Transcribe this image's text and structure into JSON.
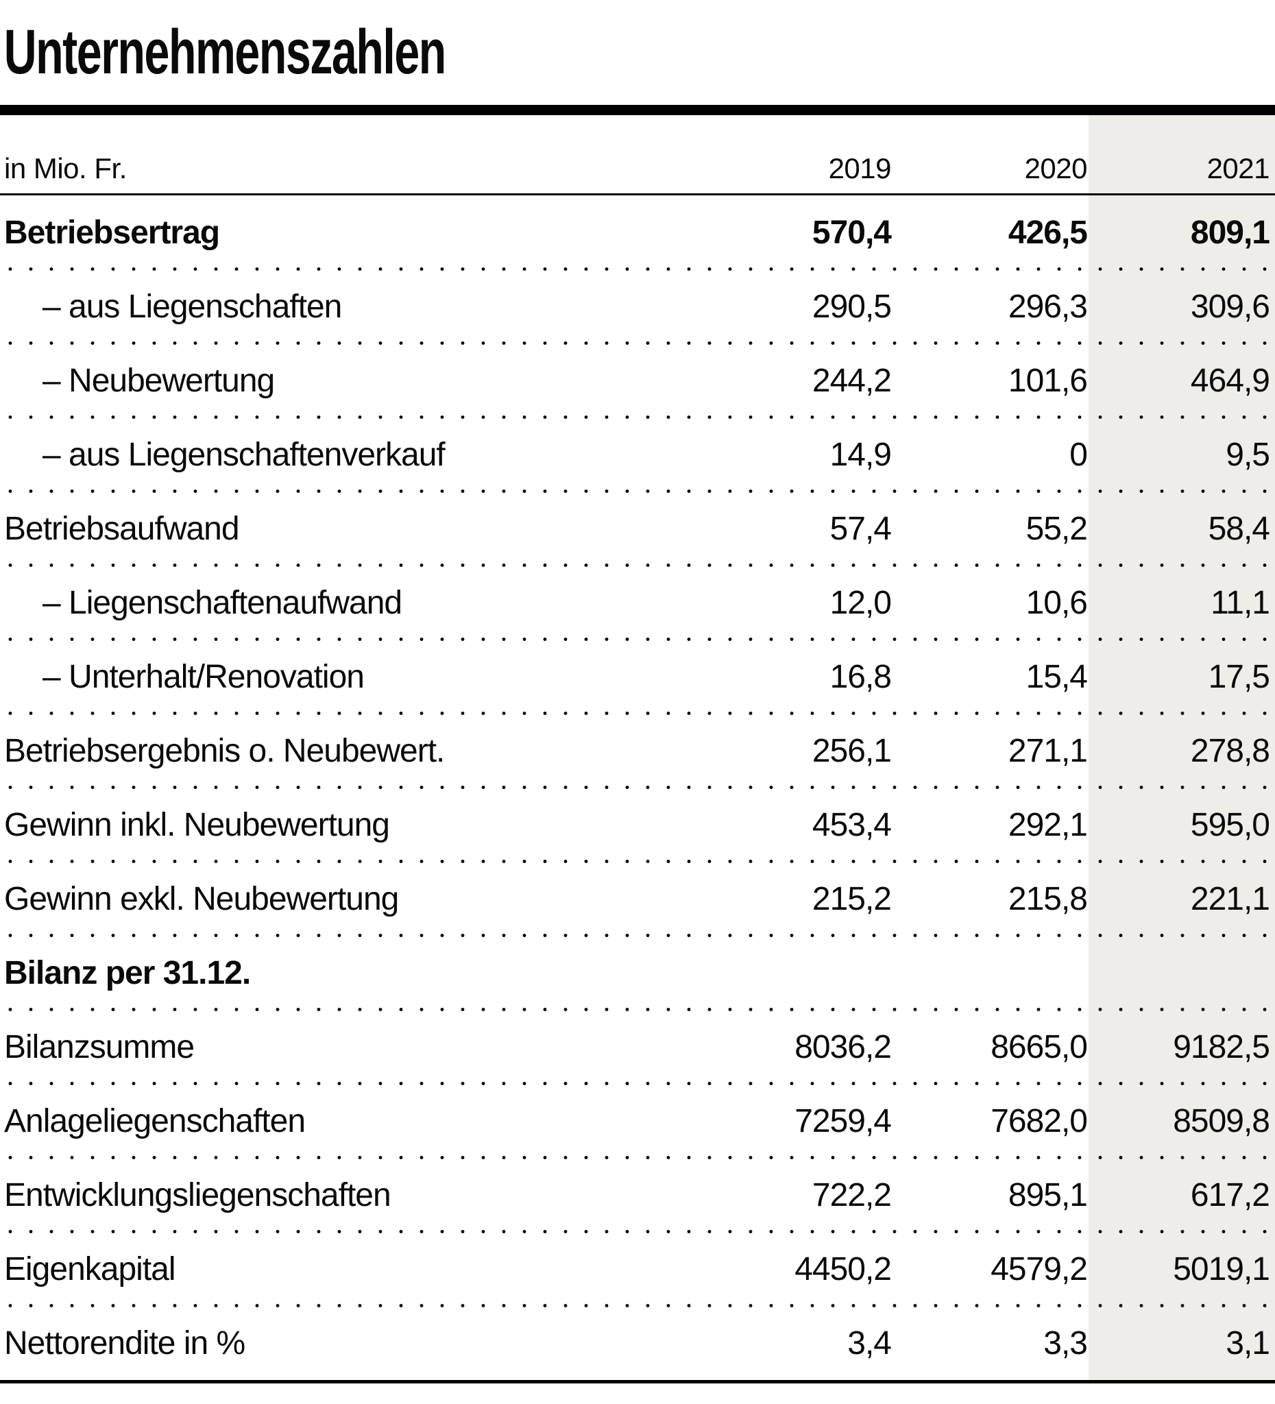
{
  "title": "Unternehmenszahlen",
  "table": {
    "unit_label": "in Mio. Fr.",
    "year_headers": [
      "2019",
      "2020",
      "2021"
    ],
    "highlight_color": "#eeede8",
    "rows": [
      {
        "label": "Betriebsertrag",
        "values": [
          "570,4",
          "426,5",
          "809,1"
        ]
      },
      {
        "label": "– aus Liegenschaften",
        "values": [
          "290,5",
          "296,3",
          "309,6"
        ]
      },
      {
        "label": "– Neubewertung",
        "values": [
          "244,2",
          "101,6",
          "464,9"
        ]
      },
      {
        "label": "– aus Liegenschaftenverkauf",
        "values": [
          "14,9",
          "0",
          "9,5"
        ]
      },
      {
        "label": "Betriebsaufwand",
        "values": [
          "57,4",
          "55,2",
          "58,4"
        ]
      },
      {
        "label": "– Liegenschaftenaufwand",
        "values": [
          "12,0",
          "10,6",
          "11,1"
        ]
      },
      {
        "label": "– Unterhalt/Renovation",
        "values": [
          "16,8",
          "15,4",
          "17,5"
        ]
      },
      {
        "label": "Betriebsergebnis o. Neubewert.",
        "values": [
          "256,1",
          "271,1",
          "278,8"
        ]
      },
      {
        "label": "Gewinn inkl. Neubewertung",
        "values": [
          "453,4",
          "292,1",
          "595,0"
        ]
      },
      {
        "label": "Gewinn exkl. Neubewertung",
        "values": [
          "215,2",
          "215,8",
          "221,1"
        ]
      },
      {
        "label": "Bilanz per 31.12.",
        "values": [
          "",
          "",
          ""
        ]
      },
      {
        "label": "Bilanzsumme",
        "values": [
          "8036,2",
          "8665,0",
          "9182,5"
        ]
      },
      {
        "label": "Anlageliegenschaften",
        "values": [
          "7259,4",
          "7682,0",
          "8509,8"
        ]
      },
      {
        "label": "Entwicklungsliegenschaften",
        "values": [
          "722,2",
          "895,1",
          "617,2"
        ]
      },
      {
        "label": "Eigenkapital",
        "values": [
          "4450,2",
          "4579,2",
          "5019,1"
        ]
      },
      {
        "label": "Nettorendite in %",
        "values": [
          "3,4",
          "3,3",
          "3,1"
        ]
      }
    ]
  },
  "chart_data": {
    "type": "table",
    "title": "Unternehmenszahlen",
    "unit": "in Mio. Fr.",
    "columns": [
      "2019",
      "2020",
      "2021"
    ],
    "highlighted_column": "2021",
    "rows": [
      {
        "label": "Betriebsertrag",
        "values": [
          570.4,
          426.5,
          809.1
        ],
        "bold": true
      },
      {
        "label": "aus Liegenschaften",
        "values": [
          290.5,
          296.3,
          309.6
        ],
        "indent": true
      },
      {
        "label": "Neubewertung",
        "values": [
          244.2,
          101.6,
          464.9
        ],
        "indent": true
      },
      {
        "label": "aus Liegenschaftenverkauf",
        "values": [
          14.9,
          0,
          9.5
        ],
        "indent": true
      },
      {
        "label": "Betriebsaufwand",
        "values": [
          57.4,
          55.2,
          58.4
        ]
      },
      {
        "label": "Liegenschaftenaufwand",
        "values": [
          12.0,
          10.6,
          11.1
        ],
        "indent": true
      },
      {
        "label": "Unterhalt/Renovation",
        "values": [
          16.8,
          15.4,
          17.5
        ],
        "indent": true
      },
      {
        "label": "Betriebsergebnis o. Neubewert.",
        "values": [
          256.1,
          271.1,
          278.8
        ]
      },
      {
        "label": "Gewinn inkl. Neubewertung",
        "values": [
          453.4,
          292.1,
          595.0
        ]
      },
      {
        "label": "Gewinn exkl. Neubewertung",
        "values": [
          215.2,
          215.8,
          221.1
        ]
      },
      {
        "label": "Bilanz per 31.12.",
        "values": [],
        "section_header": true
      },
      {
        "label": "Bilanzsumme",
        "values": [
          8036.2,
          8665.0,
          9182.5
        ]
      },
      {
        "label": "Anlageliegenschaften",
        "values": [
          7259.4,
          7682.0,
          8509.8
        ]
      },
      {
        "label": "Entwicklungsliegenschaften",
        "values": [
          722.2,
          895.1,
          617.2
        ]
      },
      {
        "label": "Eigenkapital",
        "values": [
          4450.2,
          4579.2,
          5019.1
        ]
      },
      {
        "label": "Nettorendite in %",
        "values": [
          3.4,
          3.3,
          3.1
        ],
        "unit": "%"
      }
    ]
  }
}
